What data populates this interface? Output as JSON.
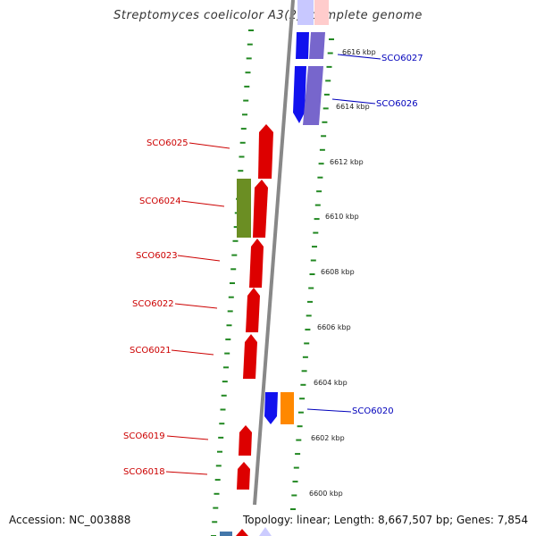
{
  "title": "Streptomyces coelicolor A3(2), complete genome",
  "footer": {
    "accession": "Accession: NC_003888",
    "summary": "Topology: linear; Length: 8,667,507 bp; Genes: 7,854"
  },
  "scale_labels": [
    "6616 kbp",
    "6614 kbp",
    "6612 kbp",
    "6610 kbp",
    "6608 kbp",
    "6606 kbp",
    "6604 kbp",
    "6602 kbp",
    "6600 kbp"
  ],
  "genes_forward": [
    {
      "label": "SCO6025",
      "color": "#dd0000"
    },
    {
      "label": "SCO6024",
      "color": "#dd0000"
    },
    {
      "label": "SCO6023",
      "color": "#dd0000"
    },
    {
      "label": "SCO6022",
      "color": "#dd0000"
    },
    {
      "label": "SCO6021",
      "color": "#dd0000"
    },
    {
      "label": "SCO6019",
      "color": "#dd0000"
    },
    {
      "label": "SCO6018",
      "color": "#dd0000"
    }
  ],
  "genes_reverse": [
    {
      "label": "SCO6027",
      "color": "#0000cc"
    },
    {
      "label": "SCO6026",
      "color": "#0000cc"
    },
    {
      "label": "SCO6020",
      "color": "#0000cc"
    }
  ],
  "colors": {
    "forward_label": "#cc0000",
    "reverse_label": "#0000bb",
    "scale_tick": "#228822",
    "olive": "#6b8e23",
    "purple": "#7766cc",
    "orange": "#ff8800",
    "axis": "#888888"
  }
}
